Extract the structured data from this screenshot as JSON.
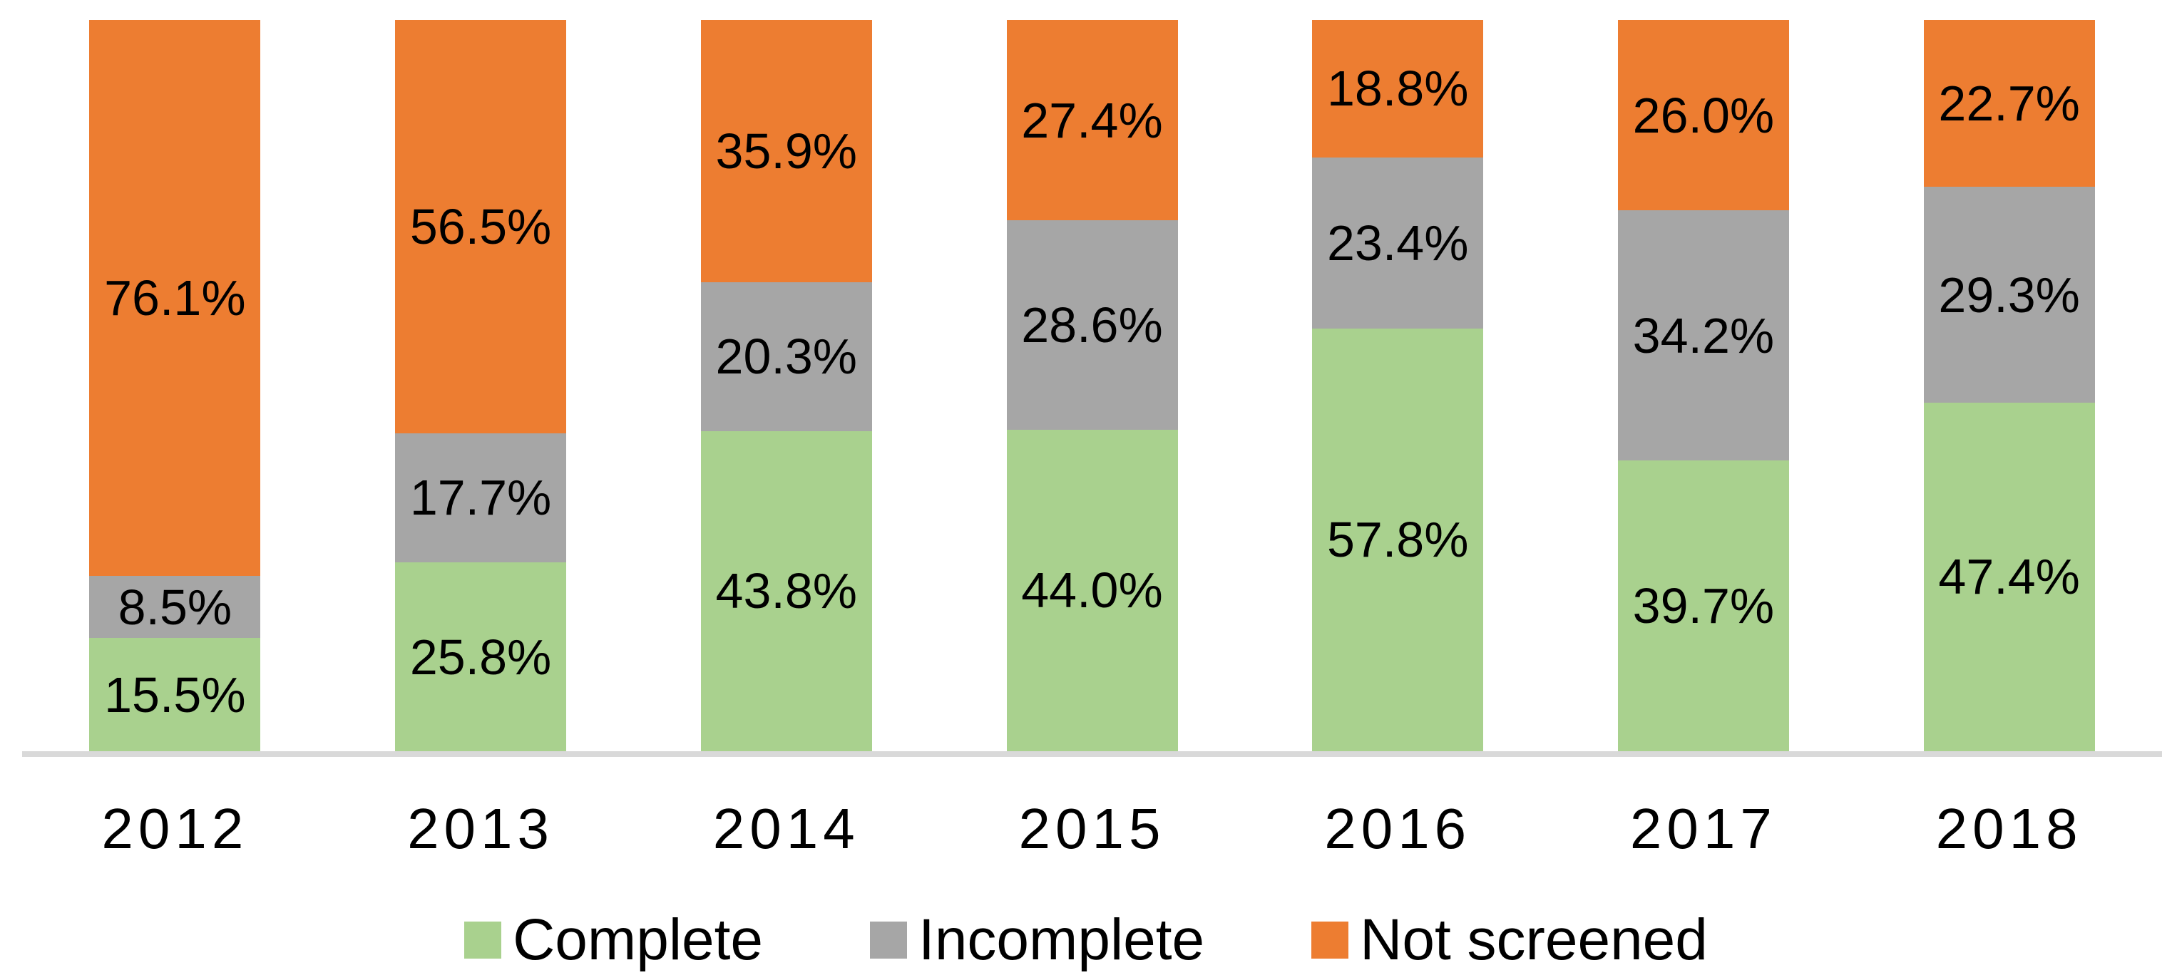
{
  "chart_data": {
    "type": "bar",
    "subtype": "stacked-100-percent",
    "title": "",
    "categories": [
      "2012",
      "2013",
      "2014",
      "2015",
      "2016",
      "2017",
      "2018"
    ],
    "series": [
      {
        "name": "Complete",
        "color": "#A9D18E",
        "values": [
          15.5,
          25.8,
          43.8,
          44.0,
          57.8,
          39.7,
          47.4
        ],
        "labels": [
          "15.5%",
          "25.8%",
          "43.8%",
          "44.0%",
          "57.8%",
          "39.7%",
          "47.4%"
        ]
      },
      {
        "name": "Incomplete",
        "color": "#A6A6A6",
        "values": [
          8.5,
          17.7,
          20.3,
          28.6,
          23.4,
          34.2,
          29.3
        ],
        "labels": [
          "8.5%",
          "17.7%",
          "20.3%",
          "28.6%",
          "23.4%",
          "34.2%",
          "29.3%"
        ]
      },
      {
        "name": "Not screened",
        "color": "#ED7D31",
        "values": [
          76.1,
          56.5,
          35.9,
          27.4,
          18.8,
          26.0,
          22.7
        ],
        "labels": [
          "76.1%",
          "56.5%",
          "35.9%",
          "27.4%",
          "18.8%",
          "26.0%",
          "22.7%"
        ]
      }
    ],
    "ylim": [
      0,
      100
    ],
    "grid": false,
    "y_axis_visible": false,
    "legend_position": "bottom",
    "axis_line_color": "#D9D9D9",
    "label_color": "#000000",
    "background_color": "#FFFFFF"
  }
}
